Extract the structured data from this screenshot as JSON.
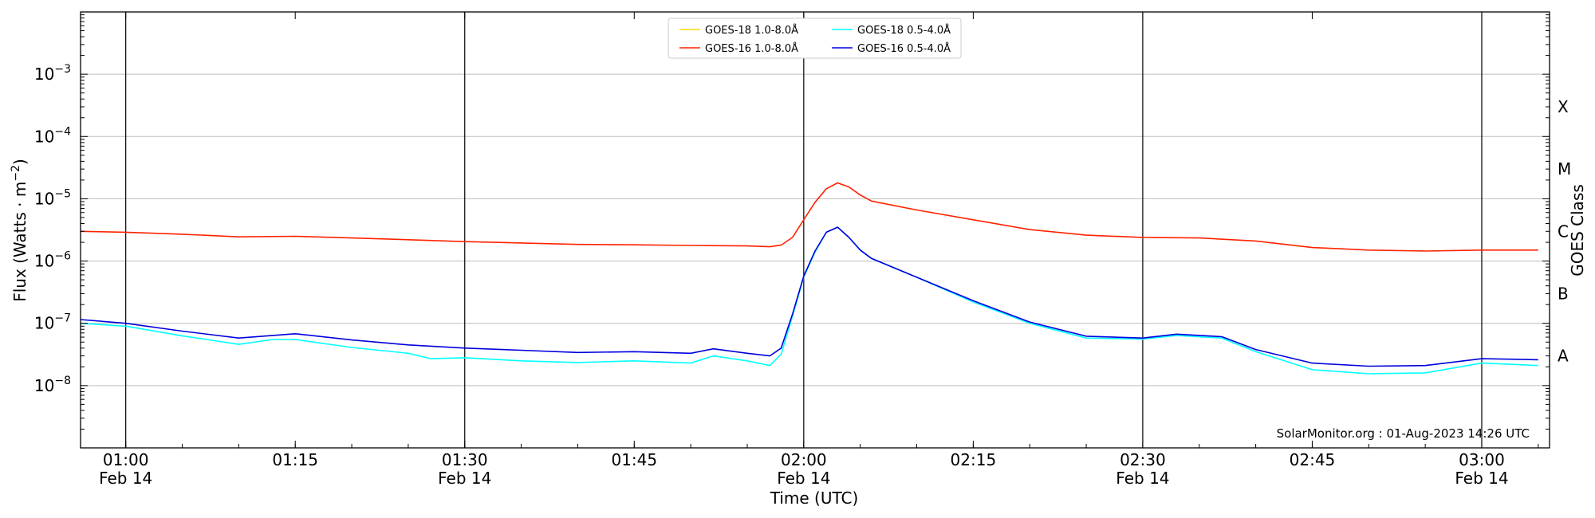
{
  "chart_data": {
    "type": "line",
    "ylabel": "Flux (Watts · m⁻²)",
    "ylabel_base": "Flux (Watts · m",
    "ylabel_sup": "−2",
    "ylabel_end": ")",
    "xlabel": "Time (UTC)",
    "right_axis_label": "GOES Class",
    "y_scale": "log",
    "ylim": [
      1e-09,
      0.01
    ],
    "xlim": [
      "00:56",
      "03:06"
    ],
    "grid": "horizontal at decades, vertical at half-hours",
    "legend_position": "top-center",
    "y_ticks": [
      {
        "value": 1e-08,
        "base": "10",
        "exp": "−8"
      },
      {
        "value": 1e-07,
        "base": "10",
        "exp": "−7"
      },
      {
        "value": 1e-06,
        "base": "10",
        "exp": "−6"
      },
      {
        "value": 1e-05,
        "base": "10",
        "exp": "−5"
      },
      {
        "value": 0.0001,
        "base": "10",
        "exp": "−4"
      },
      {
        "value": 0.001,
        "base": "10",
        "exp": "−3"
      }
    ],
    "x_ticks": [
      {
        "time": "01:00",
        "label": "01:00",
        "date": "Feb 14",
        "major": true
      },
      {
        "time": "01:15",
        "label": "01:15",
        "date": "",
        "major": false
      },
      {
        "time": "01:30",
        "label": "01:30",
        "date": "Feb 14",
        "major": true
      },
      {
        "time": "01:45",
        "label": "01:45",
        "date": "",
        "major": false
      },
      {
        "time": "02:00",
        "label": "02:00",
        "date": "Feb 14",
        "major": true
      },
      {
        "time": "02:15",
        "label": "02:15",
        "date": "",
        "major": false
      },
      {
        "time": "02:30",
        "label": "02:30",
        "date": "Feb 14",
        "major": true
      },
      {
        "time": "02:45",
        "label": "02:45",
        "date": "",
        "major": false
      },
      {
        "time": "03:00",
        "label": "03:00",
        "date": "Feb 14",
        "major": true
      }
    ],
    "goes_classes": [
      {
        "label": "A",
        "value": 3e-08
      },
      {
        "label": "B",
        "value": 3e-07
      },
      {
        "label": "C",
        "value": 3e-06
      },
      {
        "label": "M",
        "value": 3e-05
      },
      {
        "label": "X",
        "value": 0.0003
      }
    ],
    "credit": "SolarMonitor.org : 01-Aug-2023 14:26 UTC",
    "series": [
      {
        "name": "GOES-18 1.0-8.0Å",
        "color": "#FFD700",
        "points": []
      },
      {
        "name": "GOES-16 1.0-8.0Å",
        "color": "#FF2200",
        "points": [
          [
            "00:56",
            3e-06
          ],
          [
            "01:00",
            2.9e-06
          ],
          [
            "01:05",
            2.7e-06
          ],
          [
            "01:10",
            2.45e-06
          ],
          [
            "01:15",
            2.5e-06
          ],
          [
            "01:20",
            2.35e-06
          ],
          [
            "01:25",
            2.2e-06
          ],
          [
            "01:30",
            2.05e-06
          ],
          [
            "01:35",
            1.95e-06
          ],
          [
            "01:40",
            1.85e-06
          ],
          [
            "01:45",
            1.82e-06
          ],
          [
            "01:50",
            1.78e-06
          ],
          [
            "01:55",
            1.75e-06
          ],
          [
            "01:57",
            1.7e-06
          ],
          [
            "01:58",
            1.8e-06
          ],
          [
            "01:59",
            2.4e-06
          ],
          [
            "02:00",
            4.6e-06
          ],
          [
            "02:01",
            8.8e-06
          ],
          [
            "02:02",
            1.45e-05
          ],
          [
            "02:03",
            1.8e-05
          ],
          [
            "02:04",
            1.55e-05
          ],
          [
            "02:05",
            1.15e-05
          ],
          [
            "02:06",
            9.2e-06
          ],
          [
            "02:10",
            6.6e-06
          ],
          [
            "02:15",
            4.6e-06
          ],
          [
            "02:20",
            3.2e-06
          ],
          [
            "02:25",
            2.6e-06
          ],
          [
            "02:30",
            2.4e-06
          ],
          [
            "02:35",
            2.35e-06
          ],
          [
            "02:40",
            2.1e-06
          ],
          [
            "02:45",
            1.65e-06
          ],
          [
            "02:50",
            1.5e-06
          ],
          [
            "02:55",
            1.45e-06
          ],
          [
            "03:00",
            1.5e-06
          ],
          [
            "03:05",
            1.5e-06
          ]
        ]
      },
      {
        "name": "GOES-18 0.5-4.0Å",
        "color": "#00FFFF",
        "points": [
          [
            "00:56",
            1e-07
          ],
          [
            "01:00",
            9e-08
          ],
          [
            "01:05",
            6.3e-08
          ],
          [
            "01:10",
            4.6e-08
          ],
          [
            "01:13",
            5.5e-08
          ],
          [
            "01:15",
            5.5e-08
          ],
          [
            "01:20",
            4.1e-08
          ],
          [
            "01:25",
            3.3e-08
          ],
          [
            "01:27",
            2.7e-08
          ],
          [
            "01:30",
            2.8e-08
          ],
          [
            "01:35",
            2.5e-08
          ],
          [
            "01:40",
            2.35e-08
          ],
          [
            "01:45",
            2.5e-08
          ],
          [
            "01:50",
            2.3e-08
          ],
          [
            "01:52",
            3e-08
          ],
          [
            "01:55",
            2.5e-08
          ],
          [
            "01:57",
            2.1e-08
          ],
          [
            "01:58",
            3.2e-08
          ],
          [
            "01:59",
            1.3e-07
          ],
          [
            "02:00",
            5.5e-07
          ],
          [
            "02:01",
            1.4e-06
          ],
          [
            "02:02",
            2.9e-06
          ],
          [
            "02:03",
            3.5e-06
          ],
          [
            "02:04",
            2.4e-06
          ],
          [
            "02:05",
            1.5e-06
          ],
          [
            "02:06",
            1.1e-06
          ],
          [
            "02:10",
            5.5e-07
          ],
          [
            "02:15",
            2.2e-07
          ],
          [
            "02:20",
            1e-07
          ],
          [
            "02:25",
            5.8e-08
          ],
          [
            "02:30",
            5.6e-08
          ],
          [
            "02:33",
            6.4e-08
          ],
          [
            "02:37",
            5.8e-08
          ],
          [
            "02:40",
            3.5e-08
          ],
          [
            "02:45",
            1.8e-08
          ],
          [
            "02:50",
            1.55e-08
          ],
          [
            "02:55",
            1.6e-08
          ],
          [
            "03:00",
            2.3e-08
          ],
          [
            "03:05",
            2.1e-08
          ]
        ]
      },
      {
        "name": "GOES-16 0.5-4.0Å",
        "color": "#0000DD",
        "points": [
          [
            "00:56",
            1.15e-07
          ],
          [
            "01:00",
            1e-07
          ],
          [
            "01:05",
            7.5e-08
          ],
          [
            "01:10",
            5.8e-08
          ],
          [
            "01:15",
            6.8e-08
          ],
          [
            "01:20",
            5.4e-08
          ],
          [
            "01:25",
            4.5e-08
          ],
          [
            "01:30",
            4e-08
          ],
          [
            "01:35",
            3.7e-08
          ],
          [
            "01:40",
            3.4e-08
          ],
          [
            "01:45",
            3.5e-08
          ],
          [
            "01:50",
            3.3e-08
          ],
          [
            "01:52",
            3.9e-08
          ],
          [
            "01:55",
            3.3e-08
          ],
          [
            "01:57",
            3e-08
          ],
          [
            "01:58",
            4e-08
          ],
          [
            "01:59",
            1.4e-07
          ],
          [
            "02:00",
            5.7e-07
          ],
          [
            "02:01",
            1.45e-06
          ],
          [
            "02:02",
            2.9e-06
          ],
          [
            "02:03",
            3.5e-06
          ],
          [
            "02:04",
            2.4e-06
          ],
          [
            "02:05",
            1.5e-06
          ],
          [
            "02:06",
            1.1e-06
          ],
          [
            "02:10",
            5.5e-07
          ],
          [
            "02:15",
            2.3e-07
          ],
          [
            "02:20",
            1.05e-07
          ],
          [
            "02:25",
            6.2e-08
          ],
          [
            "02:30",
            5.8e-08
          ],
          [
            "02:33",
            6.7e-08
          ],
          [
            "02:37",
            6.1e-08
          ],
          [
            "02:40",
            3.8e-08
          ],
          [
            "02:45",
            2.3e-08
          ],
          [
            "02:50",
            2.05e-08
          ],
          [
            "02:55",
            2.1e-08
          ],
          [
            "03:00",
            2.7e-08
          ],
          [
            "03:05",
            2.6e-08
          ]
        ]
      }
    ]
  }
}
